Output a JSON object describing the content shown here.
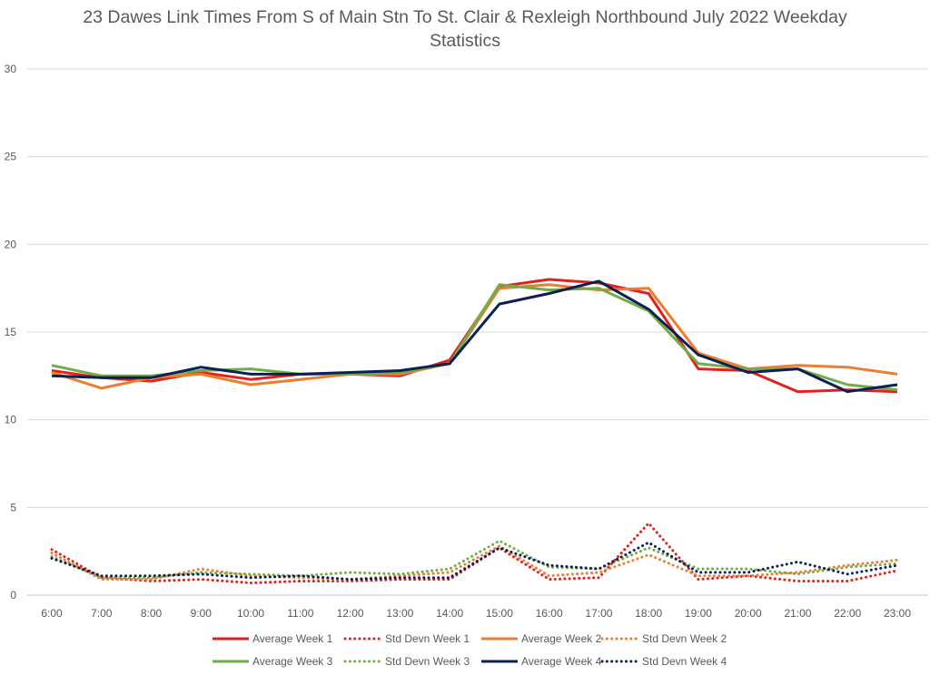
{
  "chart_data": {
    "type": "line",
    "title_line1": "23 Dawes Link Times From S of Main Stn To St. Clair & Rexleigh Northbound July 2022 Weekday",
    "title_line2": "Statistics",
    "xlabel": "",
    "ylabel": "",
    "ylim": [
      0,
      30
    ],
    "yticks": [
      0,
      5,
      10,
      15,
      20,
      25,
      30
    ],
    "grid": true,
    "legend_position": "bottom",
    "categories": [
      "6:00",
      "7:00",
      "8:00",
      "9:00",
      "10:00",
      "11:00",
      "12:00",
      "13:00",
      "14:00",
      "15:00",
      "16:00",
      "17:00",
      "18:00",
      "19:00",
      "20:00",
      "21:00",
      "22:00",
      "23:00"
    ],
    "series": [
      {
        "name": "Average Week 1",
        "style": "solid",
        "color": "#e3211c",
        "values": [
          12.8,
          12.4,
          12.2,
          12.7,
          12.3,
          12.6,
          12.6,
          12.5,
          13.4,
          17.6,
          18.0,
          17.8,
          17.2,
          12.9,
          12.8,
          11.6,
          11.7,
          11.6
        ]
      },
      {
        "name": "Std Devn Week 1",
        "style": "dotted",
        "color": "#e3211c",
        "values": [
          2.6,
          1.0,
          0.8,
          0.9,
          0.7,
          0.8,
          0.8,
          0.9,
          0.9,
          2.7,
          0.9,
          1.0,
          4.1,
          0.9,
          1.1,
          0.8,
          0.8,
          1.4
        ]
      },
      {
        "name": "Average Week 2",
        "style": "solid",
        "color": "#ed7d31",
        "values": [
          12.7,
          11.8,
          12.4,
          12.6,
          12.0,
          12.3,
          12.6,
          12.6,
          13.2,
          17.5,
          17.7,
          17.4,
          17.5,
          13.8,
          12.9,
          13.1,
          13.0,
          12.6
        ]
      },
      {
        "name": "Std Devn Week 2",
        "style": "dotted",
        "color": "#ed7d31",
        "values": [
          2.4,
          0.9,
          0.9,
          1.5,
          1.1,
          1.0,
          0.9,
          1.1,
          1.3,
          2.8,
          1.1,
          1.3,
          2.3,
          1.1,
          1.1,
          1.3,
          1.7,
          2.0
        ]
      },
      {
        "name": "Average Week 3",
        "style": "solid",
        "color": "#70ad47",
        "values": [
          13.1,
          12.5,
          12.5,
          12.8,
          12.9,
          12.6,
          12.6,
          12.7,
          13.2,
          17.7,
          17.4,
          17.5,
          16.2,
          13.2,
          12.9,
          12.9,
          12.0,
          11.7
        ]
      },
      {
        "name": "Std Devn Week 3",
        "style": "dotted",
        "color": "#70ad47",
        "values": [
          2.2,
          1.0,
          1.0,
          1.3,
          1.2,
          1.1,
          1.3,
          1.2,
          1.5,
          3.1,
          1.6,
          1.5,
          2.7,
          1.5,
          1.5,
          1.2,
          1.6,
          1.8
        ]
      },
      {
        "name": "Average Week 4",
        "style": "solid",
        "color": "#0b2057",
        "values": [
          12.5,
          12.4,
          12.4,
          13.0,
          12.6,
          12.6,
          12.7,
          12.8,
          13.2,
          16.6,
          17.2,
          17.9,
          16.3,
          13.7,
          12.7,
          12.9,
          11.6,
          12.0
        ]
      },
      {
        "name": "Std Devn Week 4",
        "style": "dotted",
        "color": "#0b2057",
        "values": [
          2.1,
          1.1,
          1.1,
          1.2,
          1.0,
          1.1,
          0.9,
          1.0,
          1.0,
          2.7,
          1.7,
          1.5,
          3.0,
          1.3,
          1.3,
          1.9,
          1.2,
          1.7
        ]
      }
    ]
  }
}
